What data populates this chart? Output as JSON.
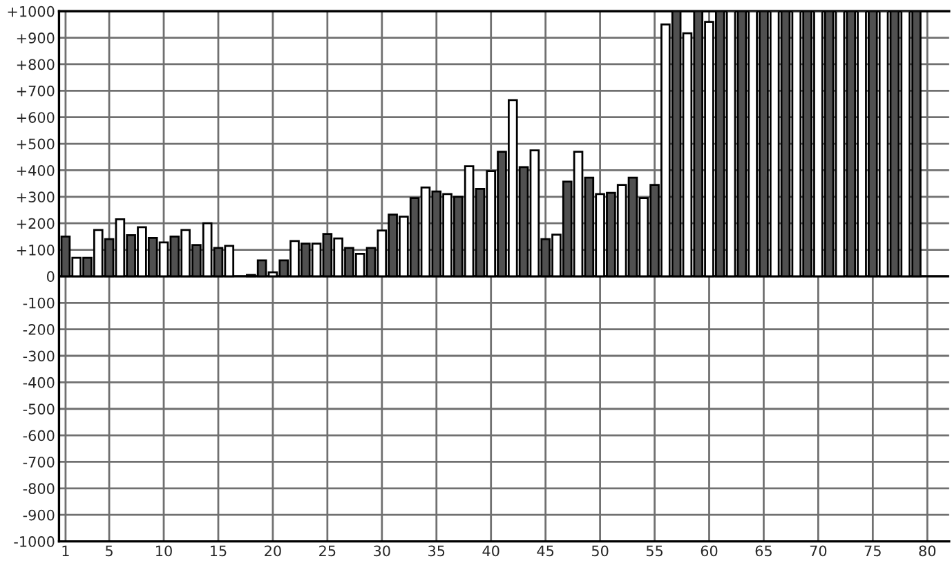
{
  "chart_data": {
    "type": "bar",
    "x": [
      1,
      2,
      3,
      4,
      5,
      6,
      7,
      8,
      9,
      10,
      11,
      12,
      13,
      14,
      15,
      16,
      17,
      18,
      19,
      20,
      21,
      22,
      23,
      24,
      25,
      26,
      27,
      28,
      29,
      30,
      31,
      32,
      33,
      34,
      35,
      36,
      37,
      38,
      39,
      40,
      41,
      42,
      43,
      44,
      45,
      46,
      47,
      48,
      49,
      50,
      51,
      52,
      53,
      54,
      55,
      56,
      57,
      58,
      59,
      60,
      61,
      62,
      63,
      64,
      65,
      66,
      67,
      68,
      69,
      70,
      71,
      72,
      73,
      74,
      75,
      76,
      77,
      78,
      79
    ],
    "values": [
      150,
      70,
      70,
      175,
      140,
      215,
      155,
      185,
      145,
      128,
      150,
      175,
      118,
      200,
      107,
      115,
      null,
      5,
      60,
      15,
      60,
      133,
      123,
      123,
      160,
      143,
      107,
      85,
      107,
      173,
      233,
      225,
      295,
      335,
      320,
      310,
      300,
      415,
      330,
      397,
      470,
      665,
      412,
      475,
      140,
      157,
      357,
      470,
      372,
      310,
      315,
      345,
      372,
      295,
      345,
      950,
      1000,
      917,
      1000,
      960,
      1000,
      1000,
      1000,
      1000,
      1000,
      1000,
      1000,
      1000,
      1000,
      1000,
      1000,
      1000,
      1000,
      1000,
      1000,
      1000,
      1000,
      1000,
      1000
    ],
    "colors": [
      "#505050",
      "#ffffff",
      "#505050",
      "#ffffff",
      "#505050",
      "#ffffff",
      "#505050",
      "#ffffff",
      "#505050",
      "#ffffff",
      "#505050",
      "#ffffff",
      "#505050",
      "#ffffff",
      "#505050",
      "#ffffff",
      "#505050",
      "#ffffff",
      "#505050",
      "#ffffff",
      "#505050",
      "#ffffff",
      "#505050",
      "#ffffff",
      "#505050",
      "#ffffff",
      "#505050",
      "#ffffff",
      "#505050",
      "#ffffff",
      "#505050",
      "#ffffff",
      "#505050",
      "#ffffff",
      "#505050",
      "#ffffff",
      "#505050",
      "#ffffff",
      "#505050",
      "#ffffff",
      "#505050",
      "#ffffff",
      "#505050",
      "#ffffff",
      "#505050",
      "#ffffff",
      "#505050",
      "#ffffff",
      "#505050",
      "#ffffff",
      "#505050",
      "#ffffff",
      "#505050",
      "#ffffff",
      "#505050",
      "#ffffff",
      "#505050",
      "#ffffff",
      "#505050",
      "#ffffff",
      "#505050",
      "#ffffff",
      "#505050",
      "#ffffff",
      "#505050",
      "#ffffff",
      "#505050",
      "#ffffff",
      "#505050",
      "#ffffff",
      "#505050",
      "#ffffff",
      "#505050",
      "#ffffff",
      "#505050",
      "#ffffff",
      "#505050",
      "#ffffff",
      "#505050"
    ],
    "xlim": [
      0.4,
      82
    ],
    "xticks": [
      1,
      5,
      10,
      15,
      20,
      25,
      30,
      35,
      40,
      45,
      50,
      55,
      60,
      65,
      70,
      75,
      80
    ],
    "ylim": [
      -1000,
      1000
    ],
    "yticks": [
      {
        "value": 1000,
        "label": "+1000"
      },
      {
        "value": 900,
        "label": "+900"
      },
      {
        "value": 800,
        "label": "+800"
      },
      {
        "value": 700,
        "label": "+700"
      },
      {
        "value": 600,
        "label": "+600"
      },
      {
        "value": 500,
        "label": "+500"
      },
      {
        "value": 400,
        "label": "+400"
      },
      {
        "value": 300,
        "label": "+300"
      },
      {
        "value": 200,
        "label": "+200"
      },
      {
        "value": 100,
        "label": "+100"
      },
      0,
      -100,
      -200,
      -300,
      -400,
      -500,
      -600,
      -700,
      -800,
      -900,
      -1000
    ],
    "grid": true
  }
}
